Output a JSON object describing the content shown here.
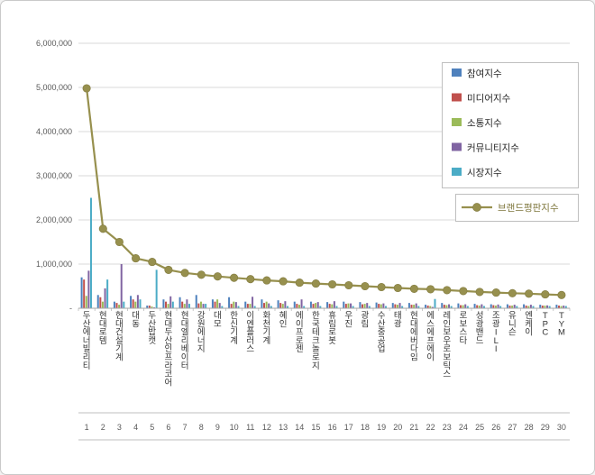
{
  "chart_data": {
    "type": "bar+line",
    "title": "",
    "xlabel": "",
    "ylabel": "",
    "ylim": [
      0,
      6000000
    ],
    "grid": true,
    "legend_position": "upper-right",
    "yticks": [
      {
        "value": 0,
        "label": "-"
      },
      {
        "value": 1000000,
        "label": "1,000,000"
      },
      {
        "value": 2000000,
        "label": "2,000,000"
      },
      {
        "value": 3000000,
        "label": "3,000,000"
      },
      {
        "value": 4000000,
        "label": "4,000,000"
      },
      {
        "value": 5000000,
        "label": "5,000,000"
      },
      {
        "value": 6000000,
        "label": "6,000,000"
      }
    ],
    "categories": [
      "두산에너빌리티",
      "현대로템",
      "현대건설기계",
      "대동",
      "두산밥캣",
      "현대두산인프라코어",
      "현대엘리베이터",
      "강원에너지",
      "대모",
      "한신기계",
      "이엔플러스",
      "화천기계",
      "혜인",
      "에이프로젠",
      "한국테크놀로지",
      "휴림로봇",
      "우진",
      "광림",
      "수산중공업",
      "태광",
      "현대에버다임",
      "에스에프에이",
      "레인보우로보틱스",
      "로보스타",
      "성광밴드",
      "조광ILI",
      "유니슨",
      "엔케이",
      "TPC",
      "TYM"
    ],
    "ranks": [
      "1",
      "2",
      "3",
      "4",
      "5",
      "6",
      "7",
      "8",
      "9",
      "10",
      "11",
      "12",
      "13",
      "14",
      "15",
      "16",
      "17",
      "18",
      "19",
      "20",
      "21",
      "22",
      "23",
      "24",
      "25",
      "26",
      "27",
      "28",
      "29",
      "30"
    ],
    "series": [
      {
        "name": "참여지수",
        "type": "bar",
        "color": "#4F81BD",
        "values": [
          700000,
          300000,
          150000,
          280000,
          60000,
          200000,
          250000,
          300000,
          200000,
          250000,
          150000,
          200000,
          180000,
          150000,
          150000,
          140000,
          150000,
          140000,
          130000,
          120000,
          120000,
          80000,
          120000,
          110000,
          100000,
          90000,
          90000,
          90000,
          80000,
          80000
        ]
      },
      {
        "name": "미디어지수",
        "type": "bar",
        "color": "#C0504D",
        "values": [
          650000,
          250000,
          120000,
          200000,
          60000,
          150000,
          150000,
          110000,
          150000,
          100000,
          100000,
          120000,
          120000,
          100000,
          100000,
          100000,
          100000,
          90000,
          100000,
          90000,
          80000,
          60000,
          80000,
          70000,
          70000,
          70000,
          60000,
          60000,
          60000,
          60000
        ]
      },
      {
        "name": "소통지수",
        "type": "bar",
        "color": "#9BBB59",
        "values": [
          280000,
          150000,
          80000,
          150000,
          40000,
          100000,
          100000,
          150000,
          200000,
          150000,
          100000,
          150000,
          100000,
          80000,
          120000,
          90000,
          110000,
          100000,
          90000,
          80000,
          80000,
          50000,
          70000,
          70000,
          60000,
          60000,
          60000,
          50000,
          60000,
          50000
        ]
      },
      {
        "name": "커뮤니티지수",
        "type": "bar",
        "color": "#8064A2",
        "values": [
          850000,
          450000,
          1000000,
          300000,
          20000,
          270000,
          200000,
          100000,
          120000,
          140000,
          260000,
          110000,
          160000,
          200000,
          140000,
          160000,
          110000,
          120000,
          110000,
          120000,
          110000,
          30000,
          90000,
          90000,
          90000,
          85000,
          80000,
          80000,
          65000,
          60000
        ]
      },
      {
        "name": "시장지수",
        "type": "bar",
        "color": "#4BACC6",
        "values": [
          2500000,
          650000,
          150000,
          200000,
          870000,
          150000,
          100000,
          100000,
          50000,
          50000,
          50000,
          50000,
          50000,
          50000,
          50000,
          50000,
          50000,
          50000,
          50000,
          50000,
          50000,
          210000,
          50000,
          50000,
          50000,
          50000,
          50000,
          50000,
          50000,
          50000
        ]
      },
      {
        "name": "브랜드평판지수",
        "type": "line",
        "color": "#97904E",
        "values": [
          4980000,
          1800000,
          1500000,
          1130000,
          1050000,
          870000,
          800000,
          760000,
          720000,
          690000,
          660000,
          630000,
          610000,
          580000,
          560000,
          540000,
          520000,
          500000,
          480000,
          460000,
          440000,
          430000,
          410000,
          390000,
          370000,
          355000,
          340000,
          330000,
          315000,
          300000
        ]
      }
    ]
  },
  "colors": {
    "background": "#FFFFFF",
    "page_border": "#C9C9C9",
    "gridline": "#D9D9D9",
    "axis": "#A6A6A6",
    "tick_label": "#595959",
    "category_label": "#333333",
    "legend_border": "#BFBFBF",
    "legend_text": "#262626",
    "line_legend_text": "#7E763B"
  }
}
